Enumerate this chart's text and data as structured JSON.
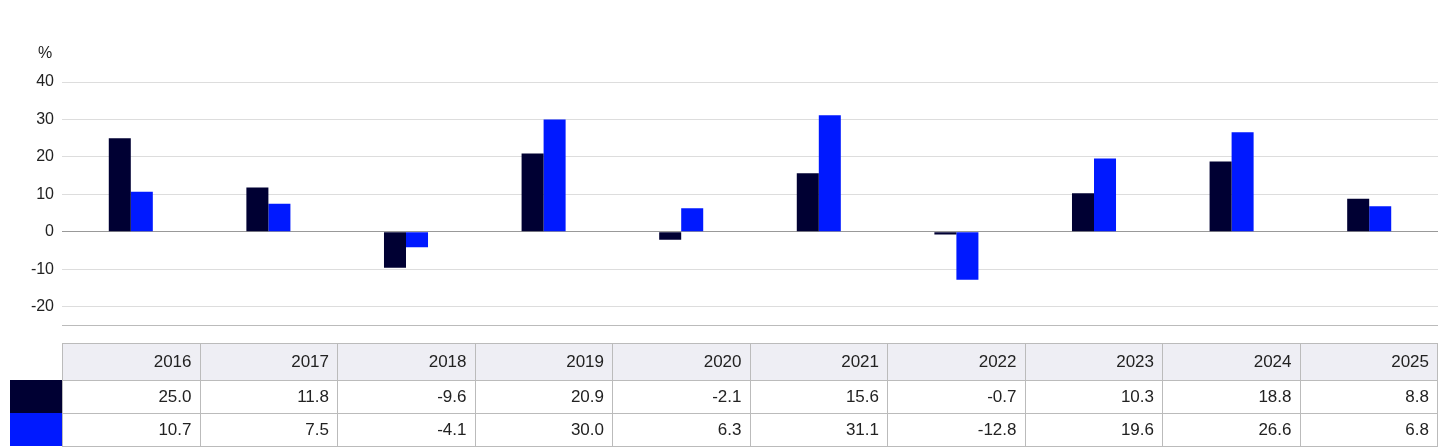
{
  "chart_data": {
    "type": "bar",
    "ylabel": "%",
    "categories": [
      "2016",
      "2017",
      "2018",
      "2019",
      "2020",
      "2021",
      "2022",
      "2023",
      "2024",
      "2025"
    ],
    "series": [
      {
        "color": "#000033",
        "values": [
          25.0,
          11.8,
          -9.6,
          20.9,
          -2.1,
          15.6,
          -0.7,
          10.3,
          18.8,
          8.8
        ],
        "value_labels": [
          "25.0",
          "11.8",
          "-9.6",
          "20.9",
          "-2.1",
          "15.6",
          "-0.7",
          "10.3",
          "18.8",
          "8.8"
        ]
      },
      {
        "color": "#0019ff",
        "values": [
          10.7,
          7.5,
          -4.1,
          30.0,
          6.3,
          31.1,
          -12.8,
          19.6,
          26.6,
          6.8
        ],
        "value_labels": [
          "10.7",
          "7.5",
          "-4.1",
          "30.0",
          "6.3",
          "31.1",
          "-12.8",
          "19.6",
          "26.6",
          "6.8"
        ]
      }
    ],
    "ylim": [
      -25,
      40
    ],
    "yticks": [
      -20,
      -10,
      0,
      10,
      20,
      30,
      40
    ],
    "grid": "y",
    "legend": false,
    "tick_labels": "y"
  }
}
